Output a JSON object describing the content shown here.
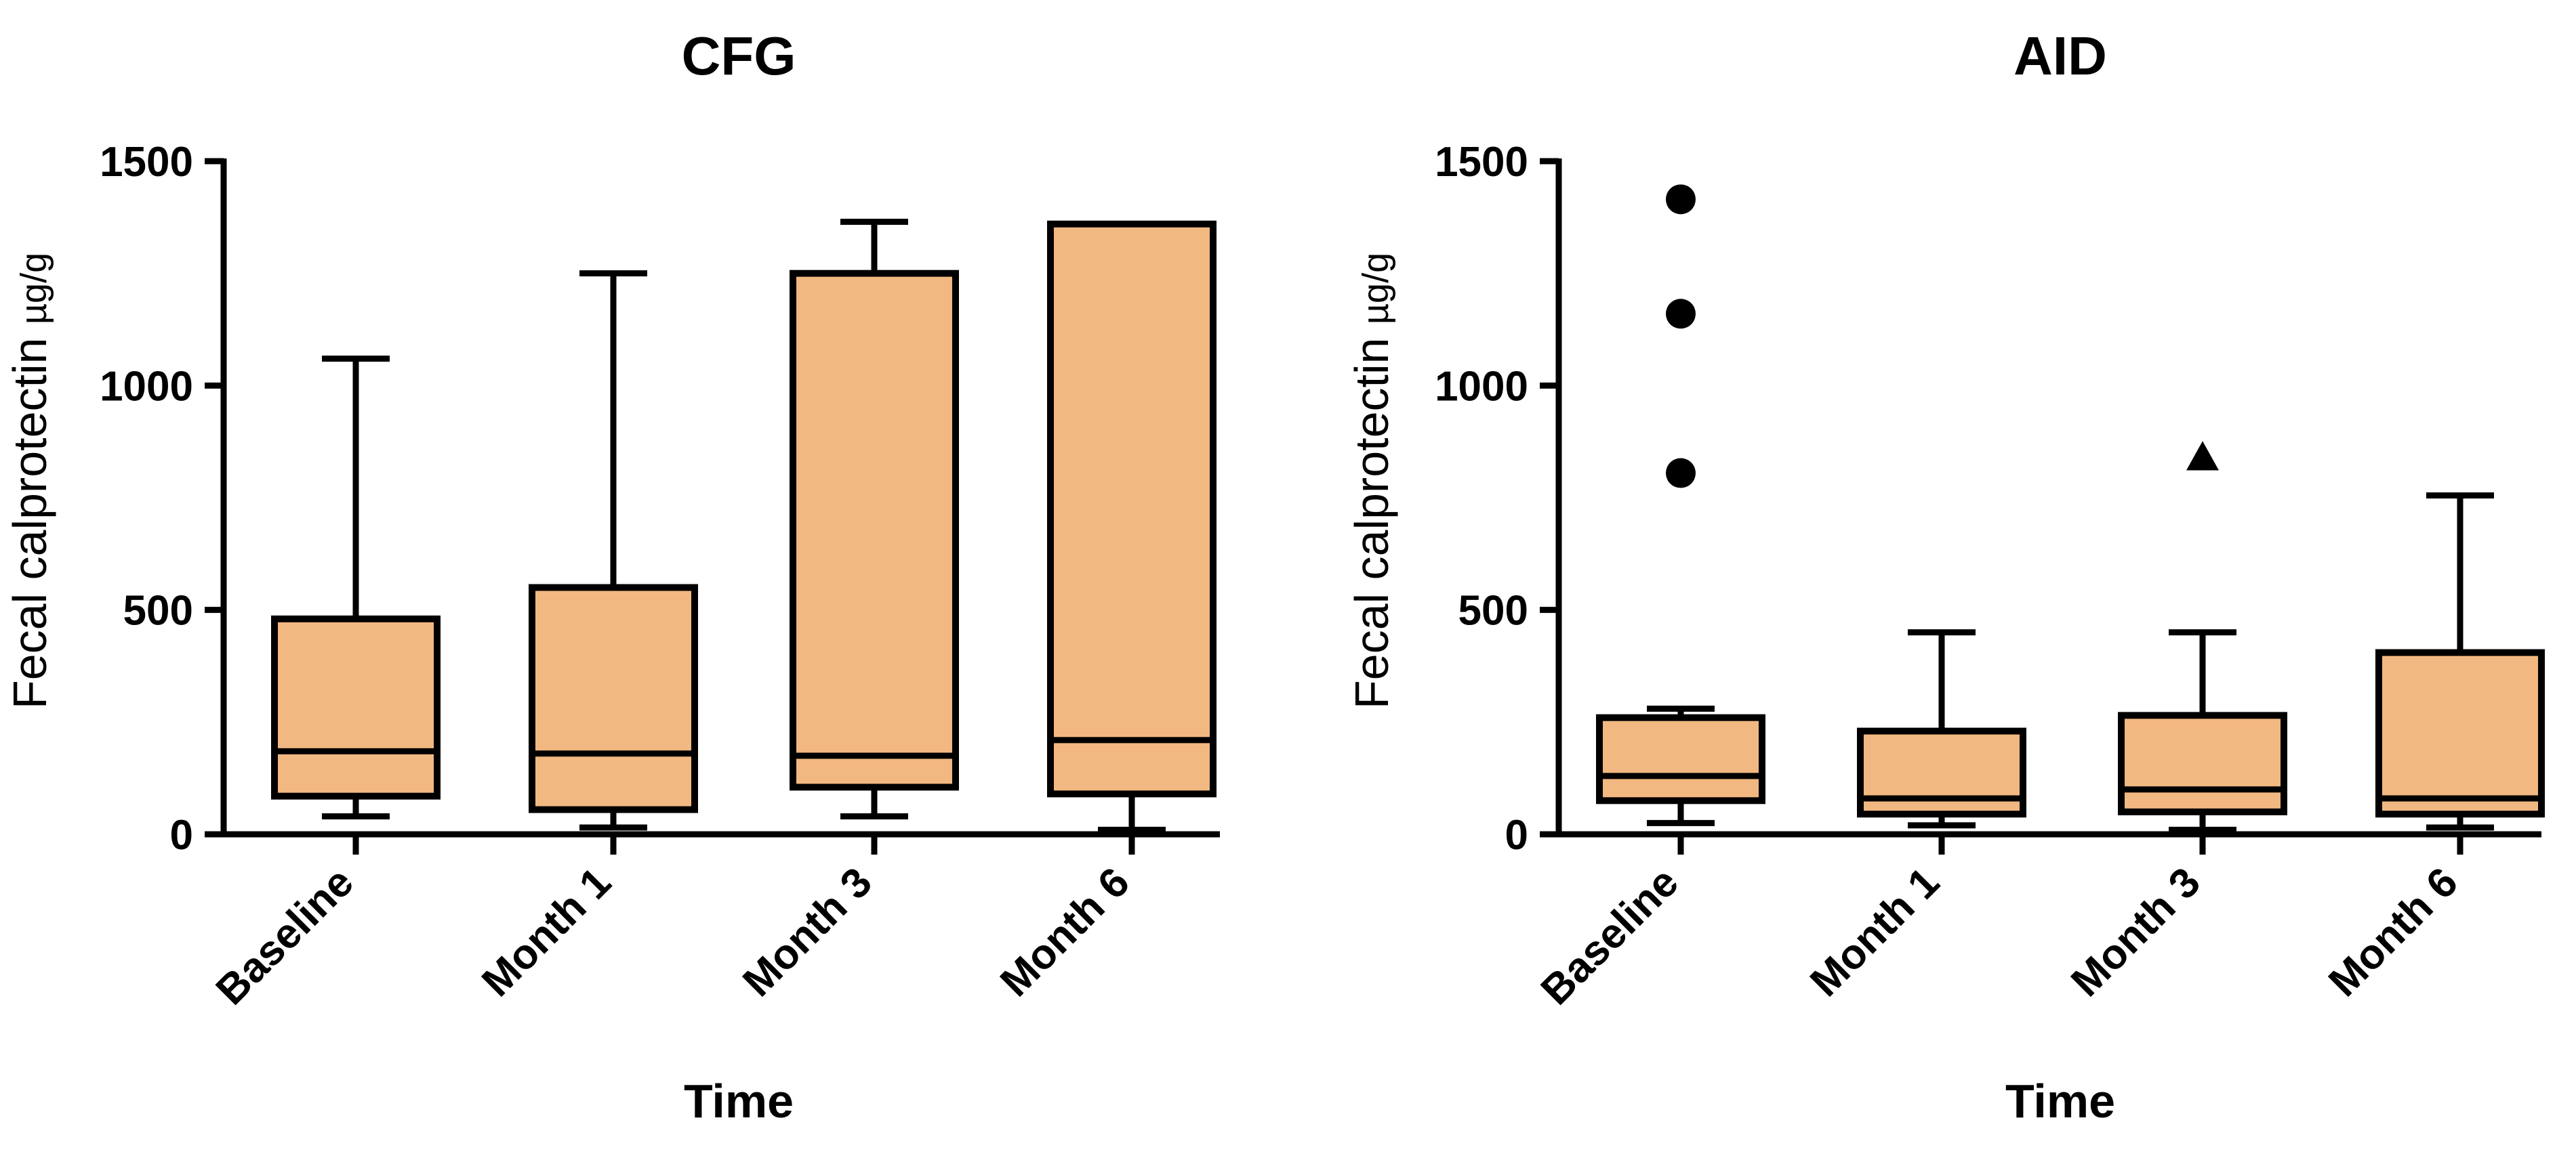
{
  "chart_data": [
    {
      "type": "boxplot",
      "title": "CFG",
      "ylabel": "Fecal calprotectin",
      "ylabel_unit": "µg/g",
      "xlabel": "Time",
      "ylim": [
        0,
        1500
      ],
      "yticks": [
        0,
        500,
        1000,
        1500
      ],
      "categories": [
        "Baseline",
        "Month 1",
        "Month 3",
        "Month 6"
      ],
      "fill_color": "#f2b881",
      "boxes": [
        {
          "whisker_low": 40,
          "q1": 85,
          "median": 185,
          "q3": 480,
          "whisker_high": 1060
        },
        {
          "whisker_low": 15,
          "q1": 55,
          "median": 180,
          "q3": 550,
          "whisker_high": 1250
        },
        {
          "whisker_low": 40,
          "q1": 105,
          "median": 175,
          "q3": 1250,
          "whisker_high": 1365
        },
        {
          "whisker_low": 10,
          "q1": 90,
          "median": 210,
          "q3": 1360,
          "whisker_high": 1360
        }
      ],
      "outliers": []
    },
    {
      "type": "boxplot",
      "title": "AID",
      "ylabel": "Fecal calprotectin",
      "ylabel_unit": "µg/g",
      "xlabel": "Time",
      "ylim": [
        0,
        1500
      ],
      "yticks": [
        0,
        500,
        1000,
        1500
      ],
      "categories": [
        "Baseline",
        "Month 1",
        "Month 3",
        "Month 6"
      ],
      "fill_color": "#f2b881",
      "boxes": [
        {
          "whisker_low": 25,
          "q1": 75,
          "median": 130,
          "q3": 260,
          "whisker_high": 280
        },
        {
          "whisker_low": 20,
          "q1": 45,
          "median": 80,
          "q3": 230,
          "whisker_high": 450
        },
        {
          "whisker_low": 10,
          "q1": 50,
          "median": 100,
          "q3": 265,
          "whisker_high": 450
        },
        {
          "whisker_low": 15,
          "q1": 45,
          "median": 80,
          "q3": 405,
          "whisker_high": 755
        }
      ],
      "outliers": [
        {
          "category_index": 0,
          "value": 1415,
          "marker": "circle"
        },
        {
          "category_index": 0,
          "value": 1160,
          "marker": "circle"
        },
        {
          "category_index": 0,
          "value": 805,
          "marker": "circle"
        },
        {
          "category_index": 2,
          "value": 840,
          "marker": "triangle"
        }
      ]
    }
  ]
}
